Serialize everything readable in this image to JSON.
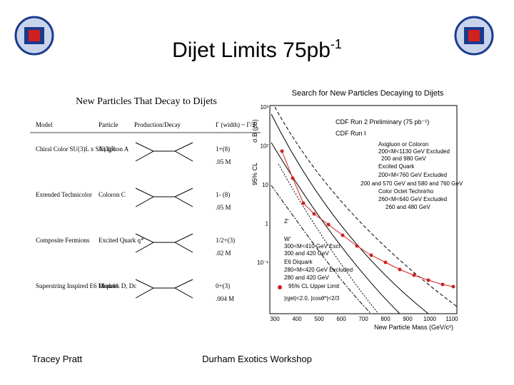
{
  "header": {
    "title": "Dijet Limits 75pb",
    "title_superscript": "-1"
  },
  "table": {
    "heading": "New Particles That Decay to Dijets",
    "columns": [
      "Model",
      "Particle",
      "Production/Decay",
      "Γ (width) ~ Γ/2"
    ],
    "rows": [
      [
        "Chiral Color SU(3)L x SU(3)R",
        "Axigluon A",
        "1+(8)",
        ".05 M"
      ],
      [
        "Extended Technicolor",
        "Coloron C",
        "1- (8)",
        ".05 M"
      ],
      [
        "Composite Fermions",
        "Excited Quark q*",
        "1/2+(3)",
        ".02 M"
      ],
      [
        "Superstring Inspired E6 Models",
        "Diquark D, Dc",
        "0+(3)",
        ".004 M"
      ]
    ]
  },
  "plot": {
    "title": "Search for New Particles Decaying to Dijets",
    "y_label": "σ.B (pb)",
    "y_label_2": "95% CL",
    "x_label": "New Particle Mass (GeV/c²)",
    "x_ticks": [
      "300",
      "400",
      "500",
      "600",
      "700",
      "800",
      "900",
      "1000",
      "1100"
    ],
    "y_ticks": [
      "10³",
      "10²",
      "10",
      "1",
      "10⁻¹"
    ],
    "legend": [
      "CDF Run 2 Preliminary (75 pb⁻¹)",
      "CDF Run I"
    ],
    "annotations": [
      "Axigluon or Coloron",
      "200<M<1130 GeV Excluded",
      "200 and 980 GeV",
      "Excited Quark",
      "200<M<760 GeV Excluded",
      "200 and 570 GeV and 580 and 760 GeV",
      "Color Octet Technirho",
      "260<M<640 GeV Excluded",
      "260 and 480 GeV",
      "Z'",
      "W'",
      "300<M<410 GeV Excl",
      "300 and 420 GeV",
      "E6 Diquark",
      "280<M<420 GeV Excluded",
      "280 and 420 GeV",
      "95% CL Upper Limit",
      "|ηjet|<2.0, |cosθ*|<2/3"
    ]
  },
  "footer": {
    "left": "Tracey Pratt",
    "center": "Durham Exotics Workshop"
  }
}
